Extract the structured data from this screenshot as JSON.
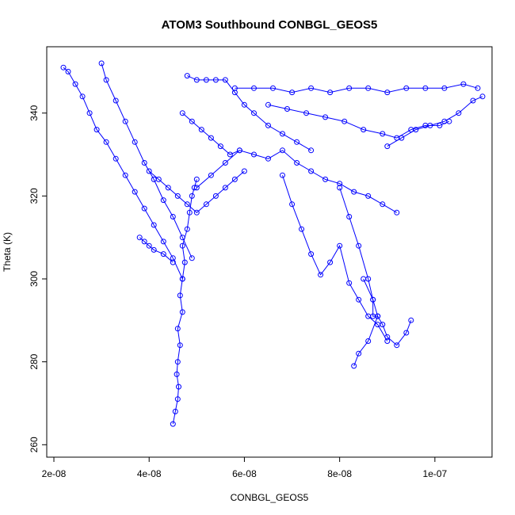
{
  "chart_data": {
    "type": "line",
    "title": "ATOM3 Southbound CONBGL_GEOS5",
    "xlabel": "CONBGL_GEOS5",
    "ylabel": "Theta (K)",
    "xlim": [
      1.85e-08,
      1.12e-07
    ],
    "ylim": [
      257,
      356
    ],
    "x_ticks": [
      2e-08,
      4e-08,
      6e-08,
      8e-08,
      1e-07
    ],
    "x_tick_labels": [
      "2e-08",
      "4e-08",
      "6e-08",
      "8e-08",
      "1e-07"
    ],
    "y_ticks": [
      260,
      280,
      300,
      320,
      340
    ],
    "y_tick_labels": [
      "260",
      "280",
      "300",
      "320",
      "340"
    ],
    "grid": false,
    "marker": "open-circle",
    "series_color": "#0000ff",
    "series": [
      {
        "x": [
          4.5e-08,
          4.55e-08,
          4.6e-08,
          4.62e-08,
          4.58e-08,
          4.6e-08,
          4.65e-08,
          4.6e-08,
          4.7e-08,
          4.65e-08,
          4.7e-08,
          4.75e-08,
          4.7e-08,
          4.8e-08,
          4.85e-08,
          4.9e-08,
          4.95e-08,
          5e-08
        ],
        "y": [
          265,
          268,
          271,
          274,
          277,
          280,
          284,
          288,
          292,
          296,
          300,
          304,
          308,
          312,
          316,
          320,
          322,
          324
        ]
      },
      {
        "x": [
          2.2e-08,
          2.3e-08,
          2.45e-08,
          2.6e-08,
          2.75e-08,
          2.9e-08,
          3.1e-08,
          3.3e-08,
          3.5e-08,
          3.7e-08,
          3.9e-08,
          4.1e-08,
          4.3e-08,
          4.5e-08,
          4.7e-08
        ],
        "y": [
          351,
          350,
          347,
          344,
          340,
          336,
          333,
          329,
          325,
          321,
          317,
          313,
          309,
          305,
          300
        ]
      },
      {
        "x": [
          3e-08,
          3.1e-08,
          3.3e-08,
          3.5e-08,
          3.7e-08,
          3.9e-08,
          4.1e-08,
          4.3e-08,
          4.5e-08,
          4.7e-08,
          4.9e-08
        ],
        "y": [
          352,
          348,
          343,
          338,
          333,
          328,
          324,
          319,
          315,
          310,
          305
        ]
      },
      {
        "x": [
          4.8e-08,
          5e-08,
          5.2e-08,
          5.4e-08,
          5.6e-08,
          5.8e-08,
          6e-08,
          6.2e-08,
          6.5e-08,
          6.8e-08,
          7.1e-08,
          7.4e-08
        ],
        "y": [
          349,
          348,
          348,
          348,
          348,
          345,
          342,
          340,
          337,
          335,
          333,
          331
        ]
      },
      {
        "x": [
          5.8e-08,
          6.2e-08,
          6.6e-08,
          7e-08,
          7.4e-08,
          7.8e-08,
          8.2e-08,
          8.6e-08,
          9e-08,
          9.4e-08,
          9.8e-08,
          1.02e-07,
          1.06e-07,
          1.09e-07
        ],
        "y": [
          346,
          346,
          346,
          345,
          346,
          345,
          346,
          346,
          345,
          346,
          346,
          346,
          347,
          346
        ]
      },
      {
        "x": [
          6.5e-08,
          6.9e-08,
          7.3e-08,
          7.7e-08,
          8.1e-08,
          8.5e-08,
          8.9e-08,
          9.2e-08,
          9.5e-08,
          9.8e-08,
          1.01e-07,
          1.03e-07
        ],
        "y": [
          342,
          341,
          340,
          339,
          338,
          336,
          335,
          334,
          336,
          337,
          337,
          338
        ]
      },
      {
        "x": [
          5e-08,
          5.3e-08,
          5.6e-08,
          5.9e-08,
          6.2e-08,
          6.5e-08,
          6.8e-08,
          7.1e-08,
          7.4e-08,
          7.7e-08,
          8e-08,
          8.3e-08,
          8.6e-08,
          8.9e-08,
          9.2e-08
        ],
        "y": [
          322,
          325,
          328,
          331,
          330,
          329,
          331,
          328,
          326,
          324,
          323,
          321,
          320,
          318,
          316
        ]
      },
      {
        "x": [
          6.8e-08,
          7e-08,
          7.2e-08,
          7.4e-08,
          7.6e-08,
          7.8e-08,
          8e-08,
          8.2e-08,
          8.4e-08,
          8.6e-08,
          8.8e-08,
          9e-08
        ],
        "y": [
          325,
          318,
          312,
          306,
          301,
          304,
          308,
          299,
          295,
          291,
          289,
          285
        ]
      },
      {
        "x": [
          8e-08,
          8.2e-08,
          8.4e-08,
          8.6e-08,
          8.7e-08,
          8.8e-08,
          8.9e-08,
          9e-08,
          9.2e-08,
          9.4e-08,
          9.5e-08
        ],
        "y": [
          322,
          315,
          308,
          300,
          295,
          291,
          289,
          286,
          284,
          287,
          290
        ]
      },
      {
        "x": [
          4e-08,
          4.2e-08,
          4.4e-08,
          4.6e-08,
          4.8e-08,
          5e-08,
          5.2e-08,
          5.4e-08,
          5.6e-08,
          5.8e-08,
          6e-08
        ],
        "y": [
          326,
          324,
          322,
          320,
          318,
          316,
          318,
          320,
          322,
          324,
          326
        ]
      },
      {
        "x": [
          9e-08,
          9.3e-08,
          9.6e-08,
          9.9e-08,
          1.02e-07,
          1.05e-07,
          1.08e-07,
          1.1e-07
        ],
        "y": [
          332,
          334,
          336,
          337,
          338,
          340,
          343,
          344
        ]
      },
      {
        "x": [
          4.7e-08,
          4.9e-08,
          5.1e-08,
          5.3e-08,
          5.5e-08,
          5.7e-08,
          5.9e-08
        ],
        "y": [
          340,
          338,
          336,
          334,
          332,
          330,
          331
        ]
      },
      {
        "x": [
          8.5e-08,
          8.7e-08,
          8.7e-08,
          8.8e-08,
          8.6e-08,
          8.4e-08,
          8.3e-08
        ],
        "y": [
          300,
          295,
          291,
          291,
          285,
          282,
          279
        ]
      },
      {
        "x": [
          3.8e-08,
          3.9e-08,
          4e-08,
          4.1e-08,
          4.3e-08,
          4.5e-08
        ],
        "y": [
          310,
          309,
          308,
          307,
          306,
          304
        ]
      }
    ]
  }
}
